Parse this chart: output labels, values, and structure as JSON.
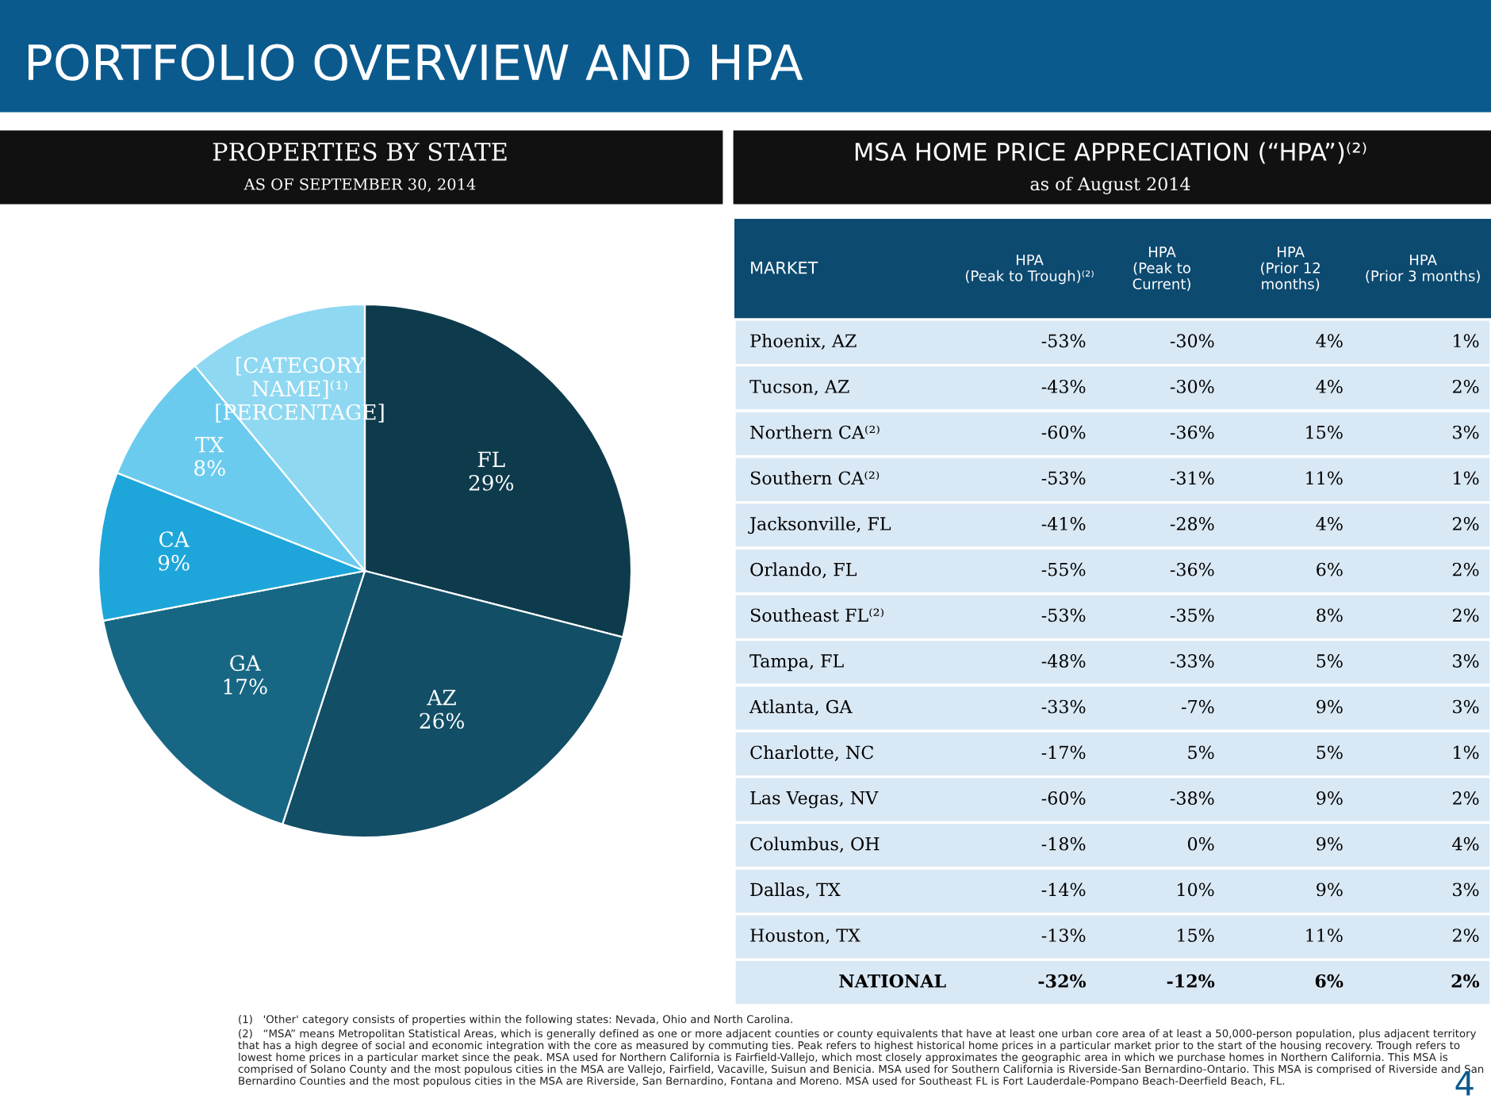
{
  "chart_data": [
    {
      "type": "pie",
      "title": "PROPERTIES BY STATE",
      "subtitle": "AS OF SEPTEMBER 30, 2014",
      "categories": [
        "FL",
        "AZ",
        "GA",
        "CA",
        "TX",
        "[CATEGORY NAME]⁽¹⁾"
      ],
      "values": [
        29,
        26,
        17,
        9,
        8,
        11
      ],
      "value_labels": [
        "29%",
        "26%",
        "17%",
        "9%",
        "8%",
        "[PERCENTAGE]"
      ],
      "colors": [
        "#0e3b4c",
        "#124e66",
        "#176784",
        "#1ea6da",
        "#6bcbee",
        "#8fd8f2"
      ],
      "legend": false,
      "annotations": [
        "PORTFOLIO OVERVIEW AND HPA",
        "(1)   'Other' category consists of properties within the following states: Nevada, Ohio and North Carolina.",
        "(2)   “MSA” means Metropolitan Statistical Areas, which is generally defined as one or more adjacent counties or county equivalents that have at least one urban core area of at least a 50,000-person population, plus adjacent territory that has a high degree of social and economic integration with the core as measured by commuting ties. Peak refers to highest historical home prices in a particular market prior to the start of the housing recovery. Trough refers to lowest home prices in a particular market since the peak. MSA used for Northern California is Fairfield-Vallejo, which most closely approximates the geographic area in which we purchase homes in Northern California. This MSA is comprised of Solano County and the most populous cities in the MSA are Vallejo, Fairfield, Vacaville, Suisun and Benicia. MSA used for Southern California is Riverside-San Bernardino-Ontario. This MSA is comprised of Riverside and San Bernardino Counties and the most populous cities in the MSA are Riverside, San Bernardino, Fontana and Moreno. MSA used for Southeast FL is Fort Lauderdale-Pompano Beach-Deerfield Beach, FL.",
        "4"
      ]
    },
    {
      "type": "other",
      "title": "MSA HOME PRICE APPRECIATION (“HPA”)⁽²⁾",
      "subtitle": "as of August 2014",
      "categories": [
        "MARKET",
        "HPA\n(Peak to Trough)⁽²⁾",
        "HPA\n(Peak to\nCurrent)",
        "HPA\n(Prior 12\nmonths)",
        "HPA\n(Prior 3 months)"
      ],
      "cell_labels": [
        [
          "Phoenix, AZ",
          "-53%",
          "-30%",
          "4%",
          "1%"
        ],
        [
          "Tucson, AZ",
          "-43%",
          "-30%",
          "4%",
          "2%"
        ],
        [
          "Northern CA⁽²⁾",
          "-60%",
          "-36%",
          "15%",
          "3%"
        ],
        [
          "Southern CA⁽²⁾",
          "-53%",
          "-31%",
          "11%",
          "1%"
        ],
        [
          "Jacksonville, FL",
          "-41%",
          "-28%",
          "4%",
          "2%"
        ],
        [
          "Orlando, FL",
          "-55%",
          "-36%",
          "6%",
          "2%"
        ],
        [
          "Southeast FL⁽²⁾",
          "-53%",
          "-35%",
          "8%",
          "2%"
        ],
        [
          "Tampa, FL",
          "-48%",
          "-33%",
          "5%",
          "3%"
        ],
        [
          "Atlanta, GA",
          "-33%",
          "-7%",
          "9%",
          "3%"
        ],
        [
          "Charlotte, NC",
          "-17%",
          "5%",
          "5%",
          "1%"
        ],
        [
          "Las Vegas, NV",
          "-60%",
          "-38%",
          "9%",
          "2%"
        ],
        [
          "Columbus, OH",
          "-18%",
          "0%",
          "9%",
          "4%"
        ],
        [
          "Dallas, TX",
          "-14%",
          "10%",
          "9%",
          "3%"
        ],
        [
          "Houston, TX",
          "-13%",
          "15%",
          "11%",
          "2%"
        ],
        [
          "NATIONAL",
          "-32%",
          "-12%",
          "6%",
          "2%"
        ]
      ]
    }
  ]
}
